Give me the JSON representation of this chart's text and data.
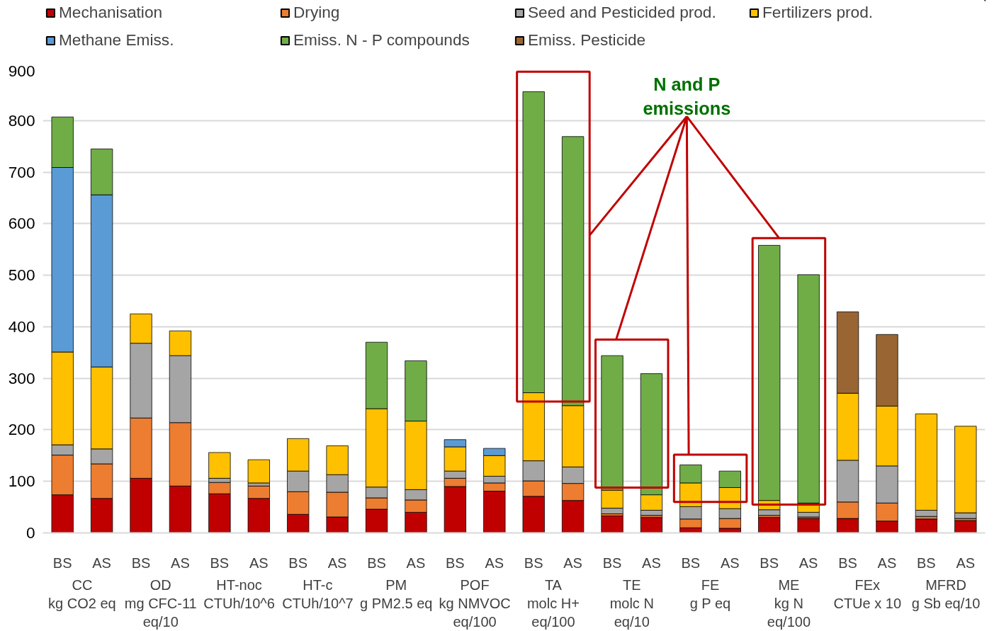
{
  "chart_data": {
    "type": "bar",
    "stacked": true,
    "categories": [
      "BS",
      "AS",
      "BS",
      "AS",
      "BS",
      "AS",
      "BS",
      "AS",
      "BS",
      "AS",
      "BS",
      "AS",
      "BS",
      "AS",
      "BS",
      "AS",
      "BS",
      "AS",
      "BS",
      "AS",
      "BS",
      "AS",
      "BS",
      "AS"
    ],
    "series": [
      {
        "name": "Mechanisation",
        "color": "#c00000",
        "values": [
          74,
          67,
          106,
          91,
          76,
          67,
          36,
          31,
          46,
          40,
          90,
          81,
          71,
          63,
          33,
          30,
          10,
          9,
          30,
          28,
          28,
          23,
          27,
          24
        ]
      },
      {
        "name": "Drying",
        "color": "#ed7d31",
        "values": [
          77,
          67,
          117,
          123,
          22,
          24,
          44,
          48,
          22,
          24,
          16,
          16,
          30,
          33,
          4,
          4,
          17,
          19,
          4,
          3,
          32,
          35,
          5,
          4
        ]
      },
      {
        "name": "Seed and Pesticided prod.",
        "color": "#a5a5a5",
        "values": [
          20,
          29,
          145,
          130,
          8,
          6,
          40,
          34,
          21,
          20,
          14,
          13,
          39,
          32,
          11,
          10,
          24,
          19,
          11,
          9,
          81,
          72,
          12,
          11
        ]
      },
      {
        "name": "Fertilizers prod.",
        "color": "#ffc000",
        "values": [
          180,
          159,
          57,
          48,
          50,
          45,
          63,
          56,
          152,
          133,
          47,
          40,
          132,
          119,
          35,
          30,
          46,
          41,
          18,
          18,
          130,
          116,
          187,
          168
        ]
      },
      {
        "name": "Methane Emiss.",
        "color": "#5b9bd5",
        "values": [
          358,
          334,
          null,
          null,
          null,
          null,
          null,
          null,
          null,
          null,
          14,
          14,
          null,
          null,
          null,
          null,
          null,
          null,
          null,
          null,
          null,
          null,
          null,
          null
        ]
      },
      {
        "name": "Emiss. N - P compounds",
        "color": "#70ad47",
        "values": [
          98,
          89,
          null,
          null,
          null,
          null,
          null,
          null,
          129,
          117,
          null,
          null,
          584,
          522,
          261,
          235,
          35,
          32,
          495,
          443,
          null,
          null,
          null,
          null
        ]
      },
      {
        "name": "Emiss. Pesticide",
        "color": "#996633",
        "values": [
          null,
          null,
          null,
          null,
          null,
          null,
          null,
          null,
          null,
          null,
          null,
          null,
          null,
          null,
          null,
          null,
          null,
          null,
          null,
          null,
          158,
          139,
          null,
          null
        ]
      }
    ],
    "ylim": [
      0,
      900
    ],
    "yticks": [
      0,
      100,
      200,
      300,
      400,
      500,
      600,
      700,
      800,
      900
    ],
    "grid": "y",
    "legend": "top",
    "annotations": [
      "CC\nkg CO2 eq",
      "OD\nmg CFC-11\neq/10",
      "HT-noc\nCTUh/10^6",
      "HT-c\nCTUh/10^7",
      "PM\ng PM2.5 eq",
      "POF\nkg NMVOC\neq/100",
      "TA\nmolc H+\neq/100",
      "TE\nmolc N\neq/10",
      "FE\ng P eq",
      "ME\nkg N\neq/100",
      "FEx\nCTUe x 10",
      "MFRD\ng Sb eq/10",
      "N and P emissions"
    ]
  }
}
